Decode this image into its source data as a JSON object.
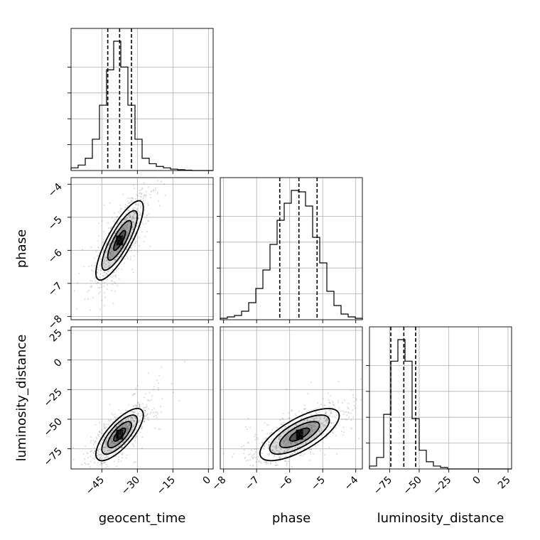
{
  "chart_data": {
    "type": "corner",
    "grid": true,
    "parameters": [
      {
        "label": "geocent_time",
        "range": [
          -58,
          2
        ],
        "ticks": [
          -45,
          -30,
          -15,
          0
        ],
        "tick_labels": [
          "−45",
          "−30",
          "−15",
          "0"
        ],
        "quantile_lines": [
          -42.5,
          -37.5,
          -32.5
        ],
        "hist_bins": [
          -58,
          -55,
          -52,
          -49,
          -46,
          -43,
          -40,
          -37,
          -34,
          -31,
          -28,
          -25,
          -22,
          -19,
          -16,
          -13,
          -10,
          -7,
          -4,
          -1,
          2
        ],
        "hist_counts": [
          2,
          4,
          9,
          23,
          48,
          74,
          95,
          76,
          48,
          23,
          9,
          5,
          3,
          2,
          1,
          0.6,
          0.3,
          0,
          0,
          0
        ]
      },
      {
        "label": "phase",
        "range": [
          -8.1,
          -3.8
        ],
        "ticks": [
          -8,
          -7,
          -6,
          -5,
          -4
        ],
        "tick_labels": [
          "−8",
          "−7",
          "−6",
          "−5",
          "−4"
        ],
        "quantile_lines": [
          -6.3,
          -5.72,
          -5.17
        ],
        "hist_bins": [
          -8.1,
          -7.885,
          -7.67,
          -7.455,
          -7.24,
          -7.025,
          -6.81,
          -6.595,
          -6.38,
          -6.165,
          -5.95,
          -5.735,
          -5.52,
          -5.305,
          -5.09,
          -4.875,
          -4.66,
          -4.445,
          -4.23,
          -4.015,
          -3.8
        ],
        "hist_counts": [
          1,
          2,
          3,
          6,
          12,
          22,
          35,
          53,
          70,
          82,
          91,
          90,
          80,
          58,
          40,
          20,
          10,
          4,
          2,
          1
        ]
      },
      {
        "label": "luminosity_distance",
        "range": [
          -92,
          28
        ],
        "ticks": [
          -75,
          -50,
          -25,
          0,
          25
        ],
        "tick_labels": [
          "−75",
          "−50",
          "−25",
          "0",
          "25"
        ],
        "quantile_lines": [
          -74,
          -63,
          -53
        ],
        "hist_bins": [
          -92,
          -86,
          -80,
          -74,
          -68,
          -62,
          -56,
          -50,
          -44,
          -38,
          -32,
          -26,
          -20,
          -14,
          -8,
          -2,
          4,
          10,
          16,
          22,
          28
        ],
        "hist_counts": [
          2,
          8,
          38,
          75,
          90,
          75,
          35,
          13,
          5,
          2,
          1,
          0,
          0,
          0,
          0,
          0,
          0,
          0,
          0,
          0
        ]
      }
    ],
    "correlations": [
      {
        "x": "geocent_time",
        "y": "phase",
        "mean": [
          -37.5,
          -5.7
        ],
        "sd": [
          5,
          0.6
        ],
        "rho": 0.82
      },
      {
        "x": "geocent_time",
        "y": "luminosity_distance",
        "mean": [
          -37.5,
          -63
        ],
        "sd": [
          5,
          11
        ],
        "rho": 0.75
      },
      {
        "x": "phase",
        "y": "luminosity_distance",
        "mean": [
          -5.7,
          -63
        ],
        "sd": [
          0.6,
          11
        ],
        "rho": 0.72
      }
    ],
    "contour_levels_sigma": [
      0.5,
      1,
      1.5,
      2
    ],
    "colors": {
      "line": "#000000",
      "grid": "#b0b0b0",
      "points": "#555555"
    }
  }
}
